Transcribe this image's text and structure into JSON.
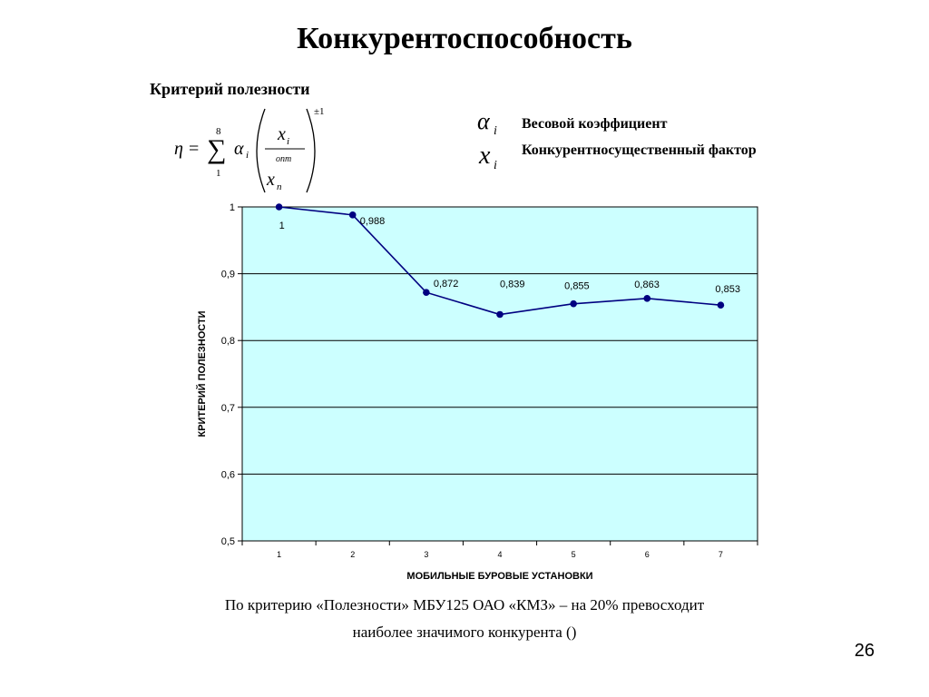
{
  "slide": {
    "title": "Конкурентоспособность",
    "subtitle": "Критерий полезности",
    "page_number": "26",
    "caption_line1": "По критерию «Полезности» МБУ125 ОАО «КМЗ» – на  20%  превосходит",
    "caption_line2": "наиболее значимого конкурента ()"
  },
  "formula": {
    "eta": "η",
    "equals": "=",
    "sum": "∑",
    "upper": "8",
    "lower": "1",
    "alpha": "α",
    "alpha_sub": "i",
    "numerator": "x",
    "numerator_sub": "i",
    "numerator_label": "опт",
    "denominator": "x",
    "denominator_sub": "n",
    "exponent": "±1"
  },
  "legend": {
    "alpha_symbol": "α",
    "alpha_sub": "i",
    "alpha_text": "Весовой коэффициент",
    "x_symbol": "x",
    "x_sub": "i",
    "x_text": "Конкурентносущественный фактор"
  },
  "chart_data": {
    "type": "line",
    "xlabel": "МОБИЛЬНЫЕ БУРОВЫЕ УСТАНОВКИ",
    "ylabel": "КРИТЕРИЙ ПОЛЕЗНОСТИ",
    "categories": [
      "1",
      "2",
      "3",
      "4",
      "5",
      "6",
      "7"
    ],
    "series": [
      {
        "values": [
          1,
          0.988,
          0.872,
          0.839,
          0.855,
          0.863,
          0.853
        ],
        "labels": [
          "1",
          "0,988",
          "0,872",
          "0,839",
          "0,855",
          "0,863",
          "0,853"
        ]
      }
    ],
    "ylim": [
      0.5,
      1
    ],
    "yticks": [
      0.5,
      0.6,
      0.7,
      0.8,
      0.9,
      1
    ],
    "ytick_labels": [
      "0,5",
      "0,6",
      "0,7",
      "0,8",
      "0,9",
      "1"
    ],
    "grid": true,
    "colors": {
      "plot_bg": "#ccffff",
      "line": "#000080",
      "grid": "#000000"
    }
  }
}
